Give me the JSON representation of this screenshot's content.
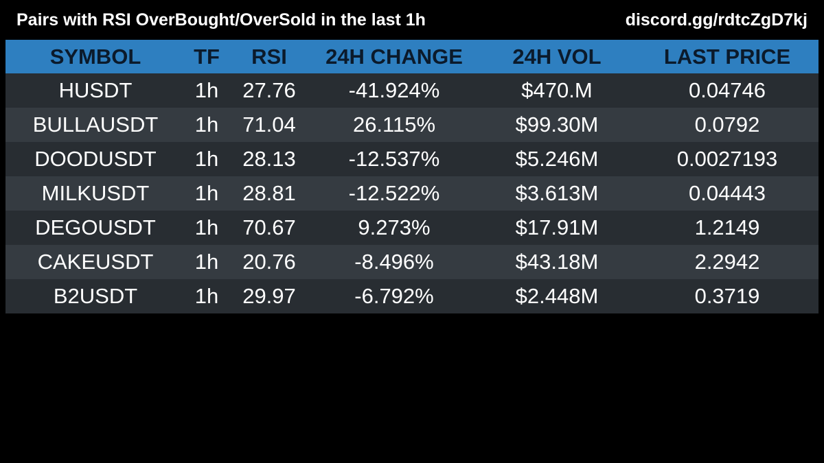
{
  "header": {
    "title": "Pairs with RSI OverBought/OverSold in the last 1h",
    "invite": "discord.gg/rdtcZgD7kj"
  },
  "table": {
    "columns": [
      "SYMBOL",
      "TF",
      "RSI",
      "24H CHANGE",
      "24H VOL",
      "LAST PRICE"
    ],
    "rows": [
      [
        "HUSDT",
        "1h",
        "27.76",
        "-41.924%",
        "$470.M",
        "0.04746"
      ],
      [
        "BULLAUSDT",
        "1h",
        "71.04",
        "26.115%",
        "$99.30M",
        "0.0792"
      ],
      [
        "DOODUSDT",
        "1h",
        "28.13",
        "-12.537%",
        "$5.246M",
        "0.0027193"
      ],
      [
        "MILKUSDT",
        "1h",
        "28.81",
        "-12.522%",
        "$3.613M",
        "0.04443"
      ],
      [
        "DEGOUSDT",
        "1h",
        "70.67",
        "9.273%",
        "$17.91M",
        "1.2149"
      ],
      [
        "CAKEUSDT",
        "1h",
        "20.76",
        "-8.496%",
        "$43.18M",
        "2.2942"
      ],
      [
        "B2USDT",
        "1h",
        "29.97",
        "-6.792%",
        "$2.448M",
        "0.3719"
      ]
    ]
  },
  "colors": {
    "background": "#000000",
    "header_row": "#2e7fc0",
    "row_dark": "#282d32",
    "row_light": "#353b41",
    "text": "#ffffff"
  }
}
